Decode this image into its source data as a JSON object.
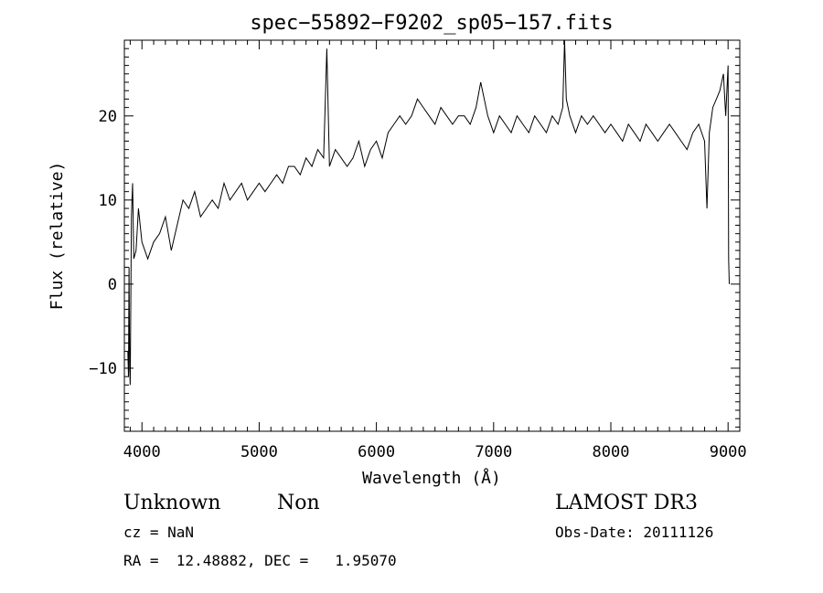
{
  "chart_data": {
    "type": "line",
    "title": "spec−55892−F9202_sp05−157.fits",
    "xlabel": "Wavelength (Å)",
    "ylabel": "Flux (relative)",
    "xlim": [
      3850,
      9100
    ],
    "ylim": [
      -17.5,
      29
    ],
    "xticks": [
      4000,
      5000,
      6000,
      7000,
      8000,
      9000
    ],
    "xtick_labels": [
      "4000",
      "5000",
      "6000",
      "7000",
      "8000",
      "9000"
    ],
    "yticks": [
      -10,
      0,
      10,
      20
    ],
    "ytick_labels": [
      "−10",
      "0",
      "10",
      "20"
    ],
    "grid": false,
    "series": [
      {
        "x": [
          3880,
          3885,
          3890,
          3895,
          3900,
          3910,
          3920,
          3930,
          3950,
          3970,
          4000,
          4050,
          4100,
          4150,
          4200,
          4250,
          4300,
          4350,
          4400,
          4450,
          4500,
          4550,
          4600,
          4650,
          4700,
          4750,
          4800,
          4850,
          4900,
          4950,
          5000,
          5050,
          5100,
          5150,
          5200,
          5250,
          5300,
          5350,
          5400,
          5450,
          5500,
          5550,
          5577,
          5600,
          5650,
          5700,
          5750,
          5800,
          5850,
          5900,
          5950,
          6000,
          6050,
          6100,
          6150,
          6200,
          6250,
          6300,
          6350,
          6400,
          6450,
          6500,
          6550,
          6600,
          6650,
          6700,
          6750,
          6800,
          6850,
          6890,
          6950,
          7000,
          7050,
          7100,
          7150,
          7200,
          7250,
          7300,
          7350,
          7400,
          7450,
          7500,
          7550,
          7590,
          7605,
          7620,
          7650,
          7700,
          7750,
          7800,
          7850,
          7900,
          7950,
          8000,
          8050,
          8100,
          8150,
          8200,
          8250,
          8300,
          8350,
          8400,
          8450,
          8500,
          8550,
          8600,
          8650,
          8700,
          8750,
          8800,
          8820,
          8840,
          8870,
          8900,
          8930,
          8960,
          8980,
          9000,
          9005,
          9010
        ],
        "y": [
          -8,
          -11,
          2,
          -10,
          -12,
          8,
          12,
          3,
          4,
          9,
          5,
          3,
          5,
          6,
          8,
          4,
          7,
          10,
          9,
          11,
          8,
          9,
          10,
          9,
          12,
          10,
          11,
          12,
          10,
          11,
          12,
          11,
          12,
          13,
          12,
          14,
          14,
          13,
          15,
          14,
          16,
          15,
          28,
          14,
          16,
          15,
          14,
          15,
          17,
          14,
          16,
          17,
          15,
          18,
          19,
          20,
          19,
          20,
          22,
          21,
          20,
          19,
          21,
          20,
          19,
          20,
          20,
          19,
          21,
          24,
          20,
          18,
          20,
          19,
          18,
          20,
          19,
          18,
          20,
          19,
          18,
          20,
          19,
          21,
          29,
          22,
          20,
          18,
          20,
          19,
          20,
          19,
          18,
          19,
          18,
          17,
          19,
          18,
          17,
          19,
          18,
          17,
          18,
          19,
          18,
          17,
          16,
          18,
          19,
          17,
          9,
          18,
          21,
          22,
          23,
          25,
          20,
          26,
          3,
          0
        ]
      }
    ]
  },
  "footer": {
    "object_class": "Unknown",
    "subclass": "Non",
    "survey": "LAMOST DR3",
    "cz": "cz = NaN",
    "obs_date": "Obs-Date: 20111126",
    "coords": "RA =  12.48882, DEC =   1.95070"
  }
}
